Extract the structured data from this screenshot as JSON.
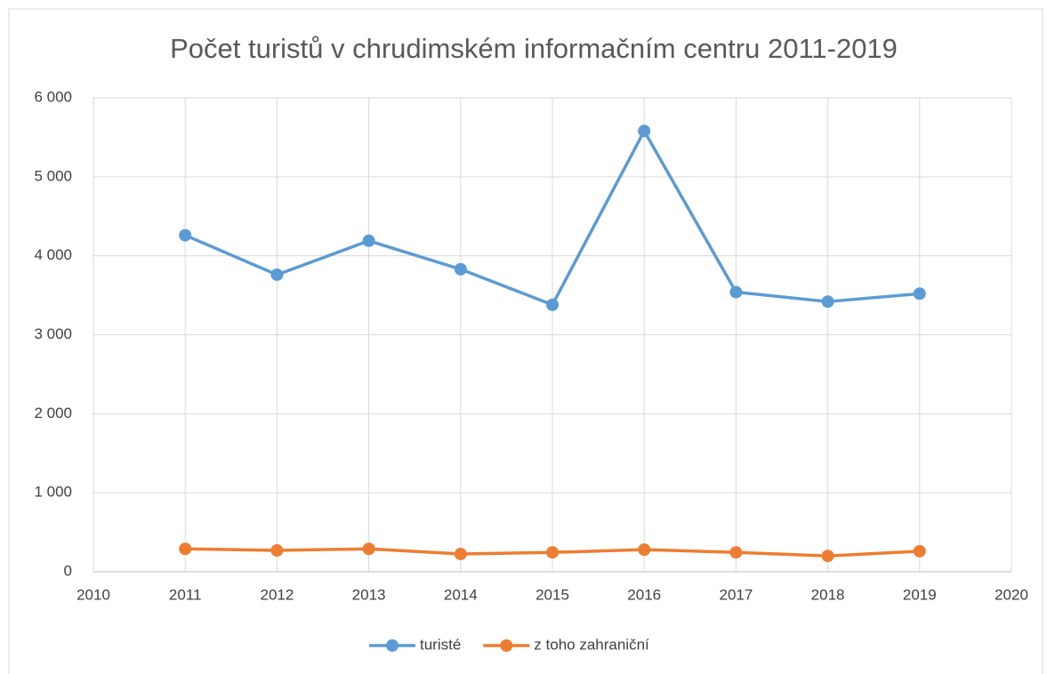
{
  "chart_data": {
    "type": "line",
    "title": "Počet turistů v chrudimském informačním centru 2011-2019",
    "x": [
      2011,
      2012,
      2013,
      2014,
      2015,
      2016,
      2017,
      2018,
      2019
    ],
    "series": [
      {
        "name": "turisté",
        "color": "#5b9bd5",
        "values": [
          4260,
          3760,
          4190,
          3830,
          3380,
          5580,
          3540,
          3420,
          3520
        ]
      },
      {
        "name": "z toho zahraniční",
        "color": "#ed7d31",
        "values": [
          290,
          270,
          290,
          225,
          245,
          280,
          245,
          200,
          260
        ]
      }
    ],
    "xlim": [
      2010,
      2020
    ],
    "xticks": [
      2010,
      2011,
      2012,
      2013,
      2014,
      2015,
      2016,
      2017,
      2018,
      2019,
      2020
    ],
    "ylim": [
      0,
      6000
    ],
    "yticks": [
      0,
      {
        "value": 1000,
        "label": "1 000"
      },
      {
        "value": 2000,
        "label": "2 000"
      },
      {
        "value": 3000,
        "label": "3 000"
      },
      {
        "value": 4000,
        "label": "4 000"
      },
      {
        "value": 5000,
        "label": "5 000"
      },
      {
        "value": 6000,
        "label": "6 000"
      }
    ],
    "grid": true,
    "legend": "bottom"
  }
}
